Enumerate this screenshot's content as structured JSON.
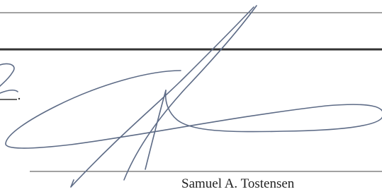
{
  "signature_block": {
    "name": "Samuel A. Tostensen"
  }
}
